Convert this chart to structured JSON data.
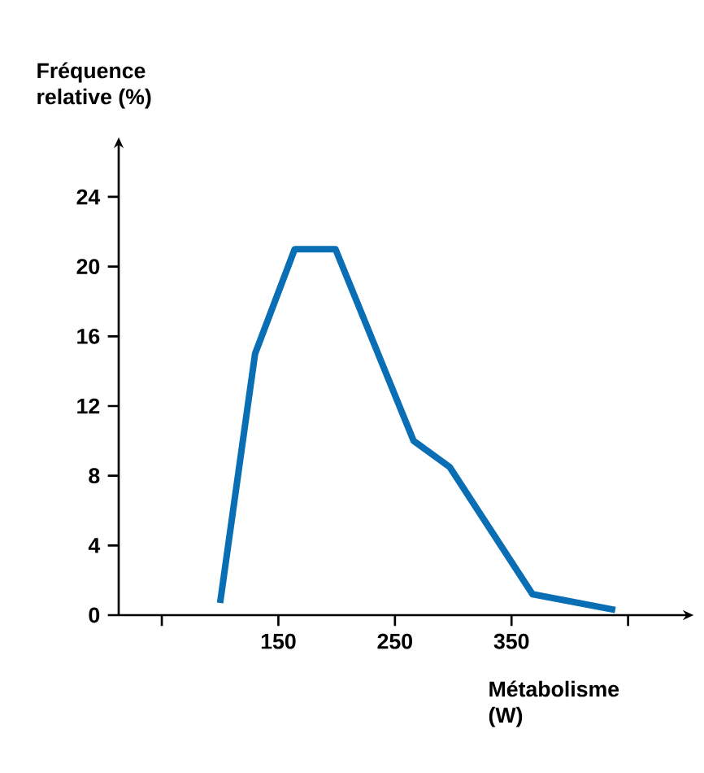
{
  "chart_data": {
    "type": "line",
    "xlabel": "Métabolisme (W)",
    "ylabel": "Fréquence relative (%)",
    "x": [
      100,
      130,
      164,
      199,
      266,
      297,
      368,
      439
    ],
    "values": [
      0.7,
      15,
      21,
      21,
      10,
      8.5,
      1.2,
      0.3
    ],
    "color": "#0a6eb4",
    "marker": "none",
    "line_style": "solid",
    "xlim": [
      13,
      497
    ],
    "ylim": [
      0,
      26.8
    ],
    "xticks": [
      {
        "value": 50,
        "label": null
      },
      150,
      250,
      350,
      {
        "value": 450,
        "label": null
      }
    ],
    "yticks": [
      0,
      4,
      8,
      12,
      16,
      20,
      24
    ]
  }
}
